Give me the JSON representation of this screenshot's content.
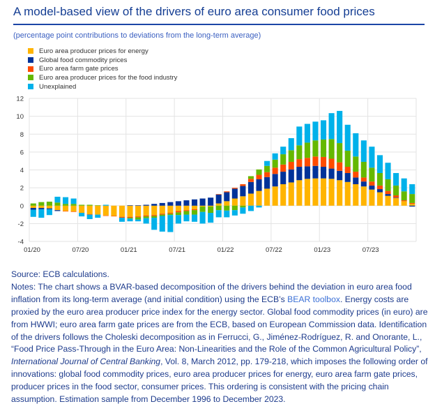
{
  "header": {
    "title": "A model-based view of the drivers of euro area consumer food prices",
    "subtitle": "(percentage point contributions to deviations from the long-term average)"
  },
  "chart_data": {
    "type": "bar",
    "stacked": true,
    "title": "A model-based view of the drivers of euro area consumer food prices",
    "ylabel": "percentage point contributions to deviations from the long-term average",
    "ylim": [
      -4,
      12
    ],
    "yticks": [
      "-4",
      "-2",
      "0",
      "2",
      "4",
      "6",
      "8",
      "10",
      "12"
    ],
    "xtick_labels": [
      "01/20",
      "07/20",
      "01/21",
      "07/21",
      "01/22",
      "07/22",
      "01/23",
      "07/23"
    ],
    "grid": true,
    "legend_position": "top-left",
    "categories": [
      "01/20",
      "02/20",
      "03/20",
      "04/20",
      "05/20",
      "06/20",
      "07/20",
      "08/20",
      "09/20",
      "10/20",
      "11/20",
      "12/20",
      "01/21",
      "02/21",
      "03/21",
      "04/21",
      "05/21",
      "06/21",
      "07/21",
      "08/21",
      "09/21",
      "10/21",
      "11/21",
      "12/21",
      "01/22",
      "02/22",
      "03/22",
      "04/22",
      "05/22",
      "06/22",
      "07/22",
      "08/22",
      "09/22",
      "10/22",
      "11/22",
      "12/22",
      "01/23",
      "02/23",
      "03/23",
      "04/23",
      "05/23",
      "06/23",
      "07/23",
      "08/23",
      "09/23",
      "10/23",
      "11/23",
      "12/23"
    ],
    "series": [
      {
        "name": "Euro area producer prices for energy",
        "color": "#ffb400",
        "values": [
          -0.25,
          -0.25,
          -0.3,
          -0.5,
          -0.6,
          -0.65,
          -0.8,
          -0.95,
          -1.0,
          -1.1,
          -1.15,
          -1.25,
          -1.25,
          -1.2,
          -1.1,
          -1.05,
          -0.9,
          -0.8,
          -0.6,
          -0.5,
          -0.4,
          -0.1,
          -0.1,
          0.25,
          0.5,
          0.8,
          1.05,
          1.35,
          1.65,
          1.9,
          2.15,
          2.4,
          2.6,
          2.85,
          3.0,
          3.05,
          3.05,
          3.0,
          2.85,
          2.65,
          2.4,
          2.15,
          1.8,
          1.5,
          1.1,
          0.85,
          0.5,
          0.2
        ]
      },
      {
        "name": "Global food commodity prices",
        "color": "#003299",
        "values": [
          -0.2,
          -0.15,
          -0.1,
          -0.1,
          0,
          0,
          0,
          0,
          0,
          0,
          0,
          0,
          0.05,
          0.05,
          0.1,
          0.2,
          0.3,
          0.4,
          0.5,
          0.6,
          0.7,
          0.8,
          0.9,
          1.0,
          1.0,
          1.1,
          1.15,
          1.3,
          1.3,
          1.3,
          1.4,
          1.4,
          1.45,
          1.5,
          1.4,
          1.4,
          1.3,
          1.15,
          1.05,
          1.0,
          0.75,
          0.55,
          0.45,
          0.35,
          0.2,
          0.05,
          0,
          -0.1
        ]
      },
      {
        "name": "Euro area farm gate prices",
        "color": "#ff4b00",
        "values": [
          0,
          0,
          0,
          0,
          -0.05,
          -0.05,
          0,
          -0.05,
          0,
          -0.05,
          -0.05,
          -0.1,
          -0.1,
          -0.1,
          -0.1,
          -0.1,
          -0.1,
          -0.1,
          -0.15,
          -0.1,
          -0.1,
          0,
          0,
          0.05,
          0.1,
          0.1,
          0.2,
          0.35,
          0.5,
          0.55,
          0.7,
          0.8,
          0.85,
          0.85,
          0.95,
          1.05,
          1.1,
          1.1,
          0.95,
          0.7,
          0.65,
          0.45,
          0.45,
          0.4,
          0.35,
          0.25,
          0.1,
          0.1
        ]
      },
      {
        "name": "Euro area producer prices for the food industry",
        "color": "#65b800",
        "values": [
          0.25,
          0.4,
          0.45,
          0.35,
          0.2,
          0.2,
          0.1,
          0.1,
          0.05,
          0,
          0,
          0,
          -0.1,
          -0.25,
          -0.2,
          -0.2,
          -0.15,
          -0.15,
          -0.3,
          -0.4,
          -0.5,
          -0.6,
          -0.7,
          -0.5,
          -0.55,
          -0.5,
          -0.2,
          0.3,
          0.6,
          0.7,
          0.9,
          1.15,
          1.3,
          1.55,
          1.7,
          1.8,
          1.95,
          2.2,
          2.15,
          1.8,
          1.7,
          1.75,
          1.55,
          1.4,
          1.3,
          1.1,
          1.0,
          1.0
        ]
      },
      {
        "name": "Unexplained",
        "color": "#00b1ea",
        "values": [
          -0.8,
          -0.95,
          -0.65,
          0.65,
          0.75,
          0.6,
          -0.4,
          -0.5,
          -0.35,
          0.1,
          0,
          -0.45,
          -0.3,
          -0.2,
          -0.6,
          -1.35,
          -1.75,
          -1.9,
          -0.95,
          -0.75,
          -0.8,
          -1.3,
          -1.1,
          -0.8,
          -0.75,
          -0.6,
          -0.7,
          -0.6,
          -0.2,
          0.55,
          0.7,
          0.85,
          1.35,
          2.1,
          2.1,
          2.1,
          2.15,
          2.9,
          3.6,
          2.9,
          2.6,
          2.4,
          2.35,
          2.0,
          1.85,
          1.4,
          1.45,
          1.1
        ]
      }
    ]
  },
  "footer": {
    "source": "Source: ECB calculations.",
    "notes_part1": "Notes: The chart shows a BVAR-based decomposition of the drivers behind the deviation in euro area food inflation from its long-term average (and initial condition) using the ECB’s ",
    "notes_link": "BEAR toolbox",
    "notes_part2": ". Energy costs are proxied by the euro area producer price index for the energy sector. Global food commodity prices (in euro) are from HWWI; euro area farm gate prices are from the ECB, based on European Commission data. Identification of the drivers follows the Choleski decomposition as in Ferrucci, G., Jiménez-Rodríguez, R. and Onorante, L., “Food Price Pass-Through in the Euro Area: Non-Linearities and the Role of the Common Agricultural Policy”, ",
    "notes_journal": "International Journal of Central Banking",
    "notes_part3": ", Vol. 8, March 2012, pp. 179-218, which imposes the following order of innovations: global food commodity prices, euro area producer prices for energy, euro area farm gate prices, producer prices in the food sector, consumer prices. This ordering is consistent with the pricing chain assumption. Estimation sample from December 1996 to December 2023."
  }
}
